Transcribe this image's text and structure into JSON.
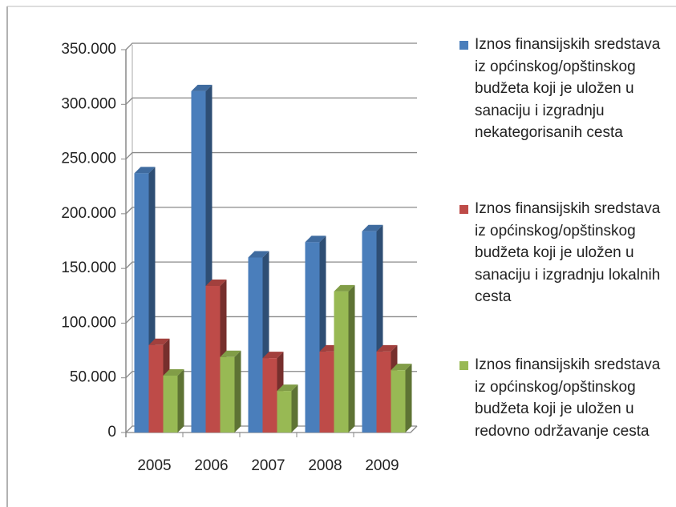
{
  "chart_data": {
    "type": "bar3d",
    "categories": [
      "2005",
      "2006",
      "2007",
      "2008",
      "2009"
    ],
    "series": [
      {
        "name": "Iznos finansijskih sredstava iz općinskog/opštinskog budžeta koji je uložen u sanaciju i izgradnju nekategorisanih cesta",
        "color": "#4a7ebb",
        "values": [
          237000,
          312000,
          160000,
          174000,
          184000
        ]
      },
      {
        "name": "Iznos finansijskih sredstava iz općinskog/opštinskog budžeta koji je uložen u sanaciju i izgradnju lokalnih cesta",
        "color": "#be4b48",
        "values": [
          80000,
          134000,
          68000,
          74000,
          74000
        ]
      },
      {
        "name": "Iznos finansijskih sredstava iz općinskog/opštinskog budžeta koji je uložen u redovno održavanje cesta",
        "color": "#98b954",
        "values": [
          52000,
          69000,
          38000,
          129000,
          57000
        ]
      }
    ],
    "ylim": [
      0,
      350000
    ],
    "yticks": [
      0,
      {
        "value": 50000,
        "label": "50.000"
      },
      {
        "value": 100000,
        "label": "100.000"
      },
      {
        "value": 150000,
        "label": "150.000"
      },
      {
        "value": 200000,
        "label": "200.000"
      },
      {
        "value": 250000,
        "label": "250.000"
      },
      {
        "value": 300000,
        "label": "300.000"
      },
      {
        "value": 350000,
        "label": "350.000"
      }
    ],
    "grid": true
  }
}
